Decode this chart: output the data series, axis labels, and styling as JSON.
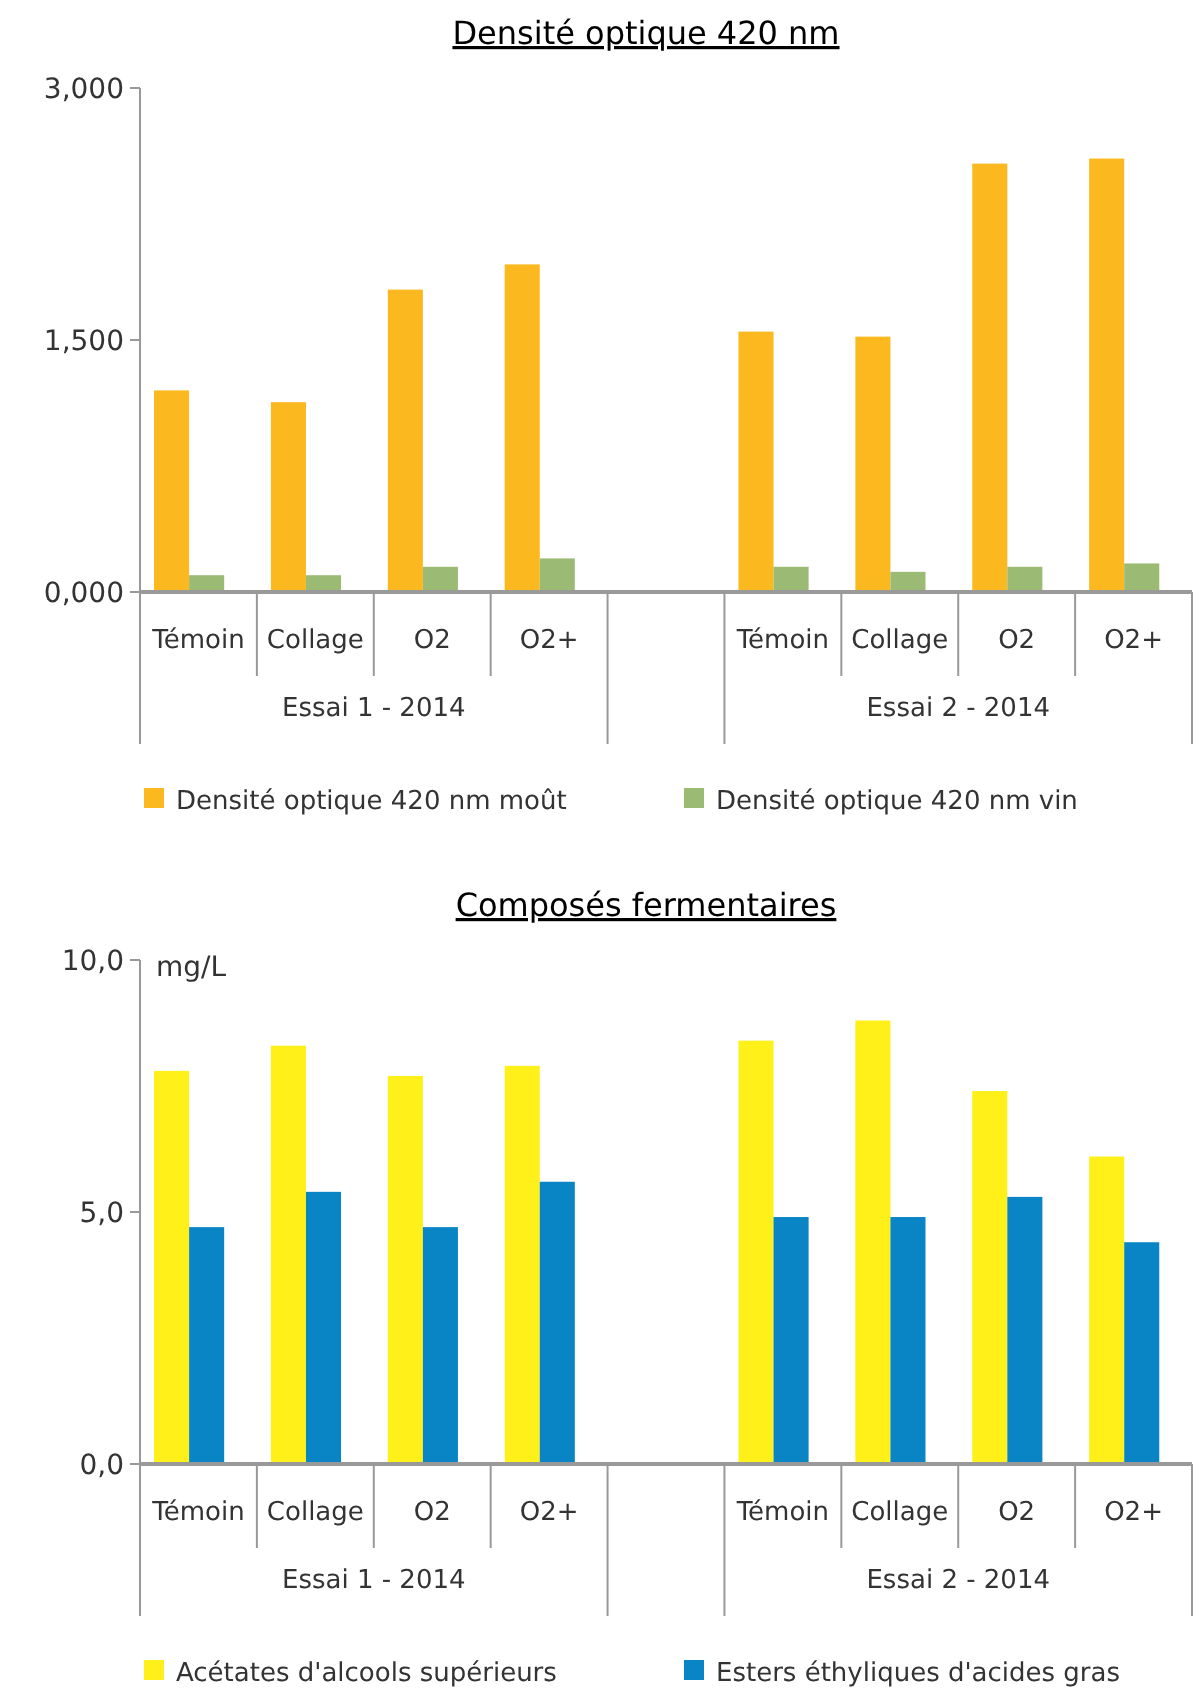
{
  "chart_data": [
    {
      "type": "bar",
      "title": "Densité optique 420 nm",
      "categories": [
        "Témoin",
        "Collage",
        "O2",
        "O2+",
        null,
        "Témoin",
        "Collage",
        "O2",
        "O2+"
      ],
      "series": [
        {
          "name": "Densité optique 420 nm moût",
          "color": "#fbb91f",
          "values": [
            1.2,
            1.13,
            1.8,
            1.95,
            null,
            1.55,
            1.52,
            2.55,
            2.58
          ]
        },
        {
          "name": "Densité optique 420 nm vin",
          "color": "#9bbb74",
          "values": [
            0.1,
            0.1,
            0.15,
            0.2,
            null,
            0.15,
            0.12,
            0.15,
            0.17
          ]
        }
      ],
      "ylim": [
        0,
        3
      ],
      "yticks": [
        {
          "value": 0,
          "label": "0,000"
        },
        {
          "value": 1.5,
          "label": "1,500"
        },
        {
          "value": 3,
          "label": "3,000"
        }
      ],
      "grid": false,
      "legend": "bottom",
      "annotations": [
        "Essai 1 - 2014",
        "Essai 2 - 2014"
      ]
    },
    {
      "type": "bar",
      "title": "Composés fermentaires",
      "ylabel": "mg/L",
      "categories": [
        "Témoin",
        "Collage",
        "O2",
        "O2+",
        null,
        "Témoin",
        "Collage",
        "O2",
        "O2+"
      ],
      "series": [
        {
          "name": "Acétates d'alcools supérieurs",
          "color": "#fff01a",
          "values": [
            7.8,
            8.3,
            7.7,
            7.9,
            null,
            8.4,
            8.8,
            7.4,
            6.1
          ]
        },
        {
          "name": "Esters éthyliques d'acides gras",
          "color": "#0985c6",
          "values": [
            4.7,
            5.4,
            4.7,
            5.6,
            null,
            4.9,
            4.9,
            5.3,
            4.4
          ]
        }
      ],
      "ylim": [
        0,
        10
      ],
      "yticks": [
        {
          "value": 0,
          "label": "0,0"
        },
        {
          "value": 5,
          "label": "5,0"
        },
        {
          "value": 10,
          "label": "10,0"
        }
      ],
      "grid": false,
      "legend": "bottom",
      "annotations": [
        "Essai 1 - 2014",
        "Essai 2 - 2014"
      ]
    }
  ]
}
